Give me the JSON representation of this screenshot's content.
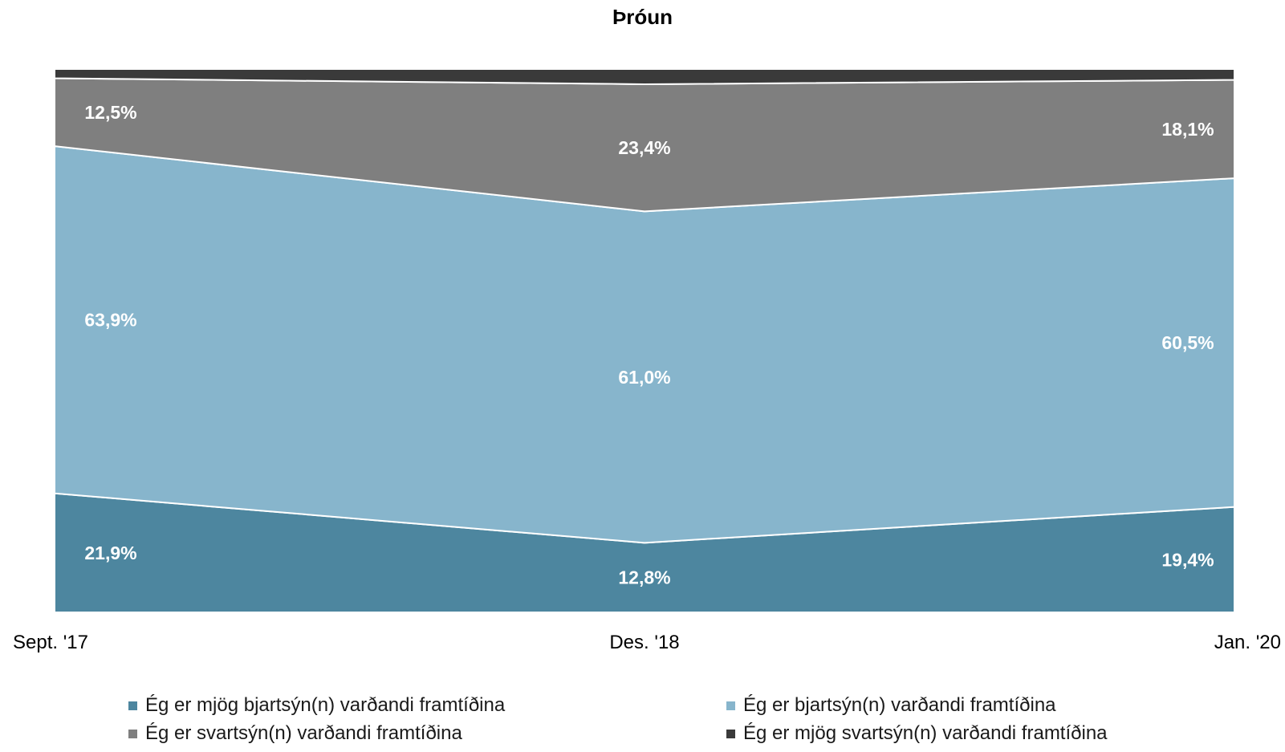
{
  "chart_data": {
    "type": "area",
    "stacked": true,
    "title": "Þróun",
    "categories": [
      "Sept. '17",
      "Des. '18",
      "Jan. '20"
    ],
    "ylim": [
      0,
      100
    ],
    "grid": false,
    "legend_position": "bottom",
    "series": [
      {
        "name": "Ég er mjög bjartsýn(n) varðandi framtíðina",
        "values": [
          21.9,
          12.8,
          19.4
        ],
        "labels": [
          "21,9%",
          "12,8%",
          "19,4%"
        ],
        "color": "#4d869f"
      },
      {
        "name": "Ég er bjartsýn(n) varðandi framtíðina",
        "values": [
          63.9,
          61.0,
          60.5
        ],
        "labels": [
          "63,9%",
          "61,0%",
          "60,5%"
        ],
        "color": "#87b5cc"
      },
      {
        "name": "Ég er svartsýn(n) varðandi framtíðina",
        "values": [
          12.5,
          23.4,
          18.1
        ],
        "labels": [
          "12,5%",
          "23,4%",
          "18,1%"
        ],
        "color": "#7f7f7f"
      },
      {
        "name": "Ég er mjög svartsýn(n) varðandi framtíðina",
        "values": [
          1.7,
          2.8,
          2.0
        ],
        "color": "#3a3a3a"
      }
    ]
  }
}
